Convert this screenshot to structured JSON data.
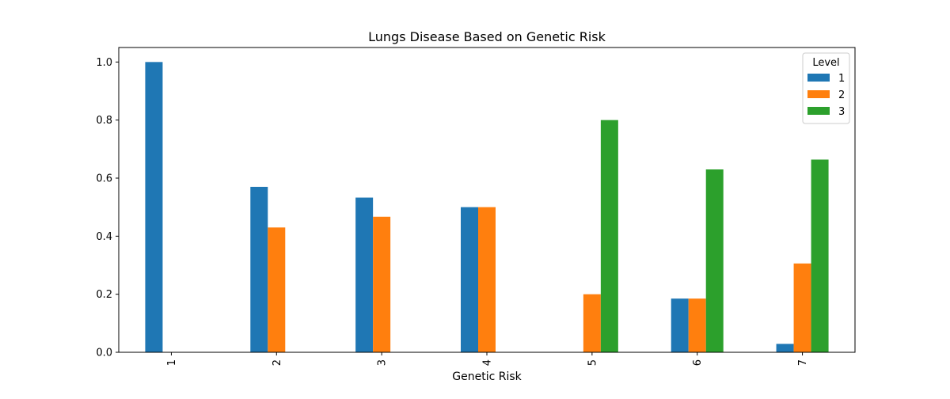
{
  "chart_data": {
    "type": "bar",
    "title": "Lungs Disease Based on Genetic Risk",
    "xlabel": "Genetic Risk",
    "ylabel": "",
    "categories": [
      "1",
      "2",
      "3",
      "4",
      "5",
      "6",
      "7"
    ],
    "ylim": [
      0,
      1.05
    ],
    "yticks": [
      0.0,
      0.2,
      0.4,
      0.6,
      0.8,
      1.0
    ],
    "ytick_labels": [
      "0.0",
      "0.2",
      "0.4",
      "0.6",
      "0.8",
      "1.0"
    ],
    "grid": false,
    "legend": {
      "title": "Level",
      "placement": "top-right"
    },
    "series": [
      {
        "name": "1",
        "color": "#1f77b4",
        "values": [
          1.0,
          0.57,
          0.533,
          0.5,
          0.0,
          0.185,
          0.029
        ]
      },
      {
        "name": "2",
        "color": "#ff7f0e",
        "values": [
          0.0,
          0.43,
          0.467,
          0.5,
          0.2,
          0.185,
          0.306
        ]
      },
      {
        "name": "3",
        "color": "#2ca02c",
        "values": [
          0.0,
          0.0,
          0.0,
          0.0,
          0.8,
          0.63,
          0.664
        ]
      }
    ]
  }
}
